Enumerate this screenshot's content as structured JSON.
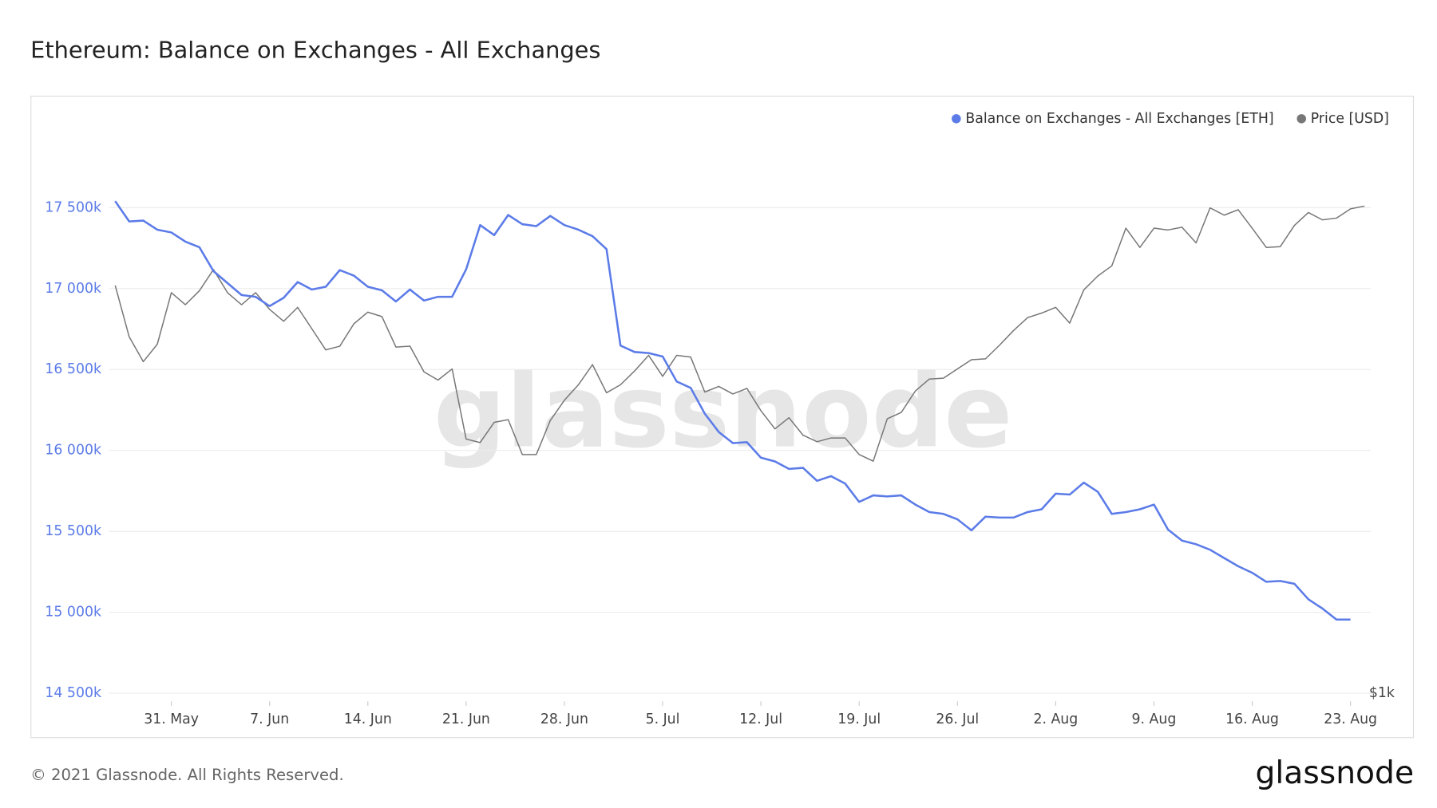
{
  "chart_data": {
    "type": "line",
    "title": "Ethereum: Balance on Exchanges - All Exchanges",
    "watermark": "glassnode",
    "footer": "© 2021 Glassnode. All Rights Reserved.",
    "logo": "glassnode",
    "categories": [
      "27. May",
      "28. May",
      "29. May",
      "30. May",
      "31. May",
      "1. Jun",
      "2. Jun",
      "3. Jun",
      "4. Jun",
      "5. Jun",
      "6. Jun",
      "7. Jun",
      "8. Jun",
      "9. Jun",
      "10. Jun",
      "11. Jun",
      "12. Jun",
      "13. Jun",
      "14. Jun",
      "15. Jun",
      "16. Jun",
      "17. Jun",
      "18. Jun",
      "19. Jun",
      "20. Jun",
      "21. Jun",
      "22. Jun",
      "23. Jun",
      "24. Jun",
      "25. Jun",
      "26. Jun",
      "27. Jun",
      "28. Jun",
      "29. Jun",
      "30. Jun",
      "1. Jul",
      "2. Jul",
      "3. Jul",
      "4. Jul",
      "5. Jul",
      "6. Jul",
      "7. Jul",
      "8. Jul",
      "9. Jul",
      "10. Jul",
      "11. Jul",
      "12. Jul",
      "13. Jul",
      "14. Jul",
      "15. Jul",
      "16. Jul",
      "17. Jul",
      "18. Jul",
      "19. Jul",
      "20. Jul",
      "21. Jul",
      "22. Jul",
      "23. Jul",
      "24. Jul",
      "25. Jul",
      "26. Jul",
      "27. Jul",
      "28. Jul",
      "29. Jul",
      "30. Jul",
      "31. Jul",
      "1. Aug",
      "2. Aug",
      "3. Aug",
      "4. Aug",
      "5. Aug",
      "6. Aug",
      "7. Aug",
      "8. Aug",
      "9. Aug",
      "10. Aug",
      "11. Aug",
      "12. Aug",
      "13. Aug",
      "14. Aug",
      "15. Aug",
      "16. Aug",
      "17. Aug",
      "18. Aug",
      "19. Aug",
      "20. Aug",
      "21. Aug",
      "22. Aug",
      "23. Aug",
      "24. Aug"
    ],
    "xticks": [
      "31. May",
      "7. Jun",
      "14. Jun",
      "21. Jun",
      "28. Jun",
      "5. Jul",
      "12. Jul",
      "19. Jul",
      "26. Jul",
      "2. Aug",
      "9. Aug",
      "16. Aug",
      "23. Aug"
    ],
    "series": [
      {
        "name": "Balance on Exchanges - All Exchanges [ETH]",
        "color": "#5b7be8",
        "axis": "y",
        "values": [
          17540000,
          17415000,
          17420000,
          17364000,
          17347000,
          17290000,
          17256000,
          17108000,
          17034000,
          16960000,
          16949000,
          16892000,
          16943000,
          17040000,
          16994000,
          17011000,
          17114000,
          17080000,
          17011000,
          16989000,
          16920000,
          16994000,
          16926000,
          16949000,
          16949000,
          17119000,
          17392000,
          17330000,
          17455000,
          17398000,
          17386000,
          17449000,
          17392000,
          17364000,
          17324000,
          17244000,
          16648000,
          16608000,
          16602000,
          16580000,
          16426000,
          16386000,
          16227000,
          16114000,
          16045000,
          16051000,
          15955000,
          15932000,
          15886000,
          15892000,
          15812000,
          15841000,
          15795000,
          15682000,
          15722000,
          15716000,
          15722000,
          15665000,
          15619000,
          15608000,
          15574000,
          15506000,
          15591000,
          15585000,
          15585000,
          15619000,
          15636000,
          15733000,
          15727000,
          15801000,
          15744000,
          15608000,
          15619000,
          15636000,
          15665000,
          15511000,
          15443000,
          15420000,
          15386000,
          15335000,
          15284000,
          15244000,
          15188000,
          15193000,
          15176000,
          15080000,
          15023000,
          14955000,
          14955000,
          null
        ]
      },
      {
        "name": "Price [USD]",
        "color": "#777777",
        "axis": "y2",
        "values": [
          2731,
          2406,
          2263,
          2362,
          2683,
          2604,
          2695,
          2840,
          2683,
          2604,
          2683,
          2575,
          2500,
          2587,
          2455,
          2330,
          2351,
          2484,
          2557,
          2529,
          2346,
          2351,
          2207,
          2163,
          2223,
          1870,
          1854,
          1949,
          1962,
          1800,
          1800,
          1958,
          2058,
          2138,
          2247,
          2096,
          2138,
          2212,
          2299,
          2183,
          2299,
          2289,
          2100,
          2129,
          2090,
          2119,
          2006,
          1918,
          1971,
          1888,
          1858,
          1875,
          1875,
          1800,
          1771,
          1966,
          1997,
          2105,
          2168,
          2173,
          2223,
          2274,
          2279,
          2357,
          2444,
          2523,
          2551,
          2587,
          2489,
          2701,
          2795,
          2866,
          3145,
          2999,
          3145,
          3131,
          3152,
          3033,
          3306,
          3247,
          3291,
          3145,
          2999,
          3005,
          3166,
          3269,
          3210,
          3224,
          3298,
          3321
        ]
      }
    ],
    "ylim": [
      14450000,
      17970000
    ],
    "yticks": [
      {
        "value": 14500000,
        "label": "14 500k"
      },
      {
        "value": 15000000,
        "label": "15 000k"
      },
      {
        "value": 15500000,
        "label": "15 500k"
      },
      {
        "value": 16000000,
        "label": "16 000k"
      },
      {
        "value": 16500000,
        "label": "16 500k"
      },
      {
        "value": 17000000,
        "label": "17 000k"
      },
      {
        "value": 17500000,
        "label": "17 500k"
      }
    ],
    "y2lim": [
      980,
      3990
    ],
    "y2ticks": [
      {
        "value": 1000,
        "label": "$1k"
      }
    ],
    "y2_log_scale": true,
    "grid": true,
    "legend": "top-right"
  }
}
